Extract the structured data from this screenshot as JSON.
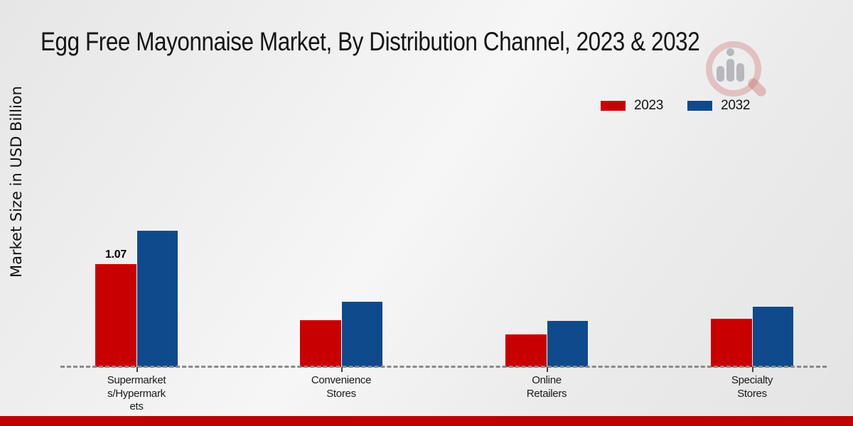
{
  "header": {
    "title": "Egg Free Mayonnaise Market, By Distribution Channel, 2023 & 2032"
  },
  "axes": {
    "ylabel": "Market Size in USD Billion"
  },
  "legend": {
    "items": [
      {
        "label": "2023",
        "color": "#c90001"
      },
      {
        "label": "2032",
        "color": "#0e4a8c"
      }
    ]
  },
  "chart_data": {
    "type": "bar",
    "title": "Egg Free Mayonnaise Market, By Distribution Channel, 2023 & 2032",
    "xlabel": "",
    "ylabel": "Market Size in USD Billion",
    "categories": [
      "Supermarkets/Hypermarkets",
      "Convenience Stores",
      "Online Retailers",
      "Specialty Stores"
    ],
    "category_label_lines": [
      [
        "Supermarket",
        "s/Hypermark",
        "ets"
      ],
      [
        "Convenience",
        "Stores"
      ],
      [
        "Online",
        "Retailers"
      ],
      [
        "Specialty",
        "Stores"
      ]
    ],
    "series": [
      {
        "name": "2023",
        "color": "#c90001",
        "values": [
          1.07,
          0.49,
          0.34,
          0.5
        ]
      },
      {
        "name": "2032",
        "color": "#0e4a8c",
        "values": [
          1.42,
          0.68,
          0.48,
          0.63
        ]
      }
    ],
    "data_labels": [
      {
        "series_index": 0,
        "category_index": 0,
        "text": "1.07"
      }
    ],
    "ylim": [
      0,
      1.55
    ],
    "grid": false,
    "legend_position": "top-right",
    "baseline_style": "dashed"
  },
  "footer": {
    "accent_bar_color": "#c00001"
  },
  "logo": {
    "name": "market-research-watermark"
  }
}
